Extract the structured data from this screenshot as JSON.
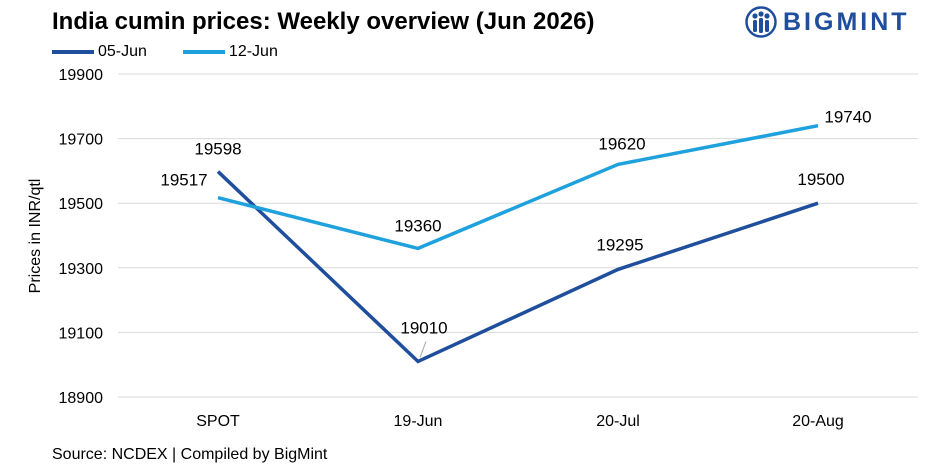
{
  "header": {
    "title": "India cumin prices: Weekly overview (Jun 2026)",
    "brand": "BIGMINT"
  },
  "footer": {
    "source": "Source: NCDEX | Compiled by BigMint"
  },
  "colors": {
    "series_05_jun": "#1f4e9c",
    "series_12_jun": "#1ea1dc",
    "gridline": "#d9d9d9",
    "brand": "#1f4e9c"
  },
  "chart_data": {
    "type": "line",
    "categories": [
      "SPOT",
      "19-Jun",
      "20-Jul",
      "20-Aug"
    ],
    "series": [
      {
        "name": "05-Jun",
        "values": [
          19598,
          19010,
          19295,
          19500
        ]
      },
      {
        "name": "12-Jun",
        "values": [
          19517,
          19360,
          19620,
          19740
        ]
      }
    ],
    "ylabel": "Prices in INR/qtl",
    "xlabel": "",
    "ylim": [
      18900,
      19900
    ],
    "yticks": [
      18900,
      19100,
      19300,
      19500,
      19700,
      19900
    ],
    "grid": true,
    "legend_position": "top-left",
    "data_labels": true
  }
}
